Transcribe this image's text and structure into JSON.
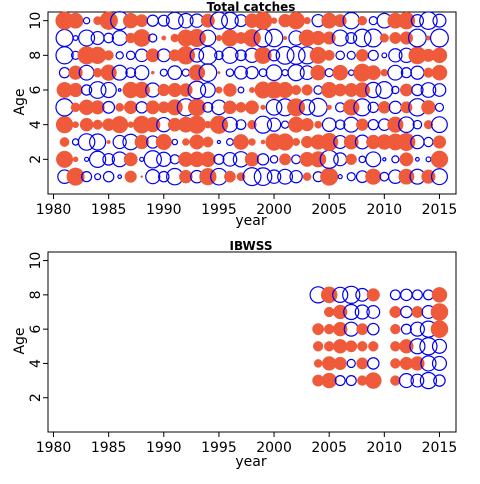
{
  "chart_data": [
    {
      "type": "scatter",
      "title": "Total catches",
      "xlabel": "year",
      "ylabel": "Age",
      "x_ticks": [
        1980,
        1985,
        1990,
        1995,
        2000,
        2005,
        2010,
        2015
      ],
      "y_ticks": [
        2,
        4,
        6,
        8,
        10
      ],
      "xlim": [
        1979.5,
        2016.5
      ],
      "ylim": [
        0,
        10.5
      ],
      "grid": false,
      "legend": "none",
      "encoding": "bubble size = residual magnitude; filled = positive, open = negative",
      "colors": {
        "positive": "#EE5A3A",
        "negative": "#0000EE"
      },
      "years": [
        1981,
        2015
      ],
      "ages": [
        1,
        10
      ],
      "residual_seed": 7
    },
    {
      "type": "scatter",
      "title": "IBWSS",
      "xlabel": "year",
      "ylabel": "Age",
      "x_ticks": [
        1980,
        1985,
        1990,
        1995,
        2000,
        2005,
        2010,
        2015
      ],
      "y_ticks": [
        2,
        4,
        6,
        8,
        10
      ],
      "xlim": [
        1979.5,
        2016.5
      ],
      "ylim": [
        0,
        10.5
      ],
      "grid": false,
      "legend": "none",
      "encoding": "bubble size = residual magnitude; filled = positive, open = negative",
      "colors": {
        "positive": "#EE5A3A",
        "negative": "#0000EE"
      },
      "points": [
        [
          2004,
          8,
          -0.8
        ],
        [
          2005,
          8,
          0.8
        ],
        [
          2006,
          8,
          -0.7
        ],
        [
          2007,
          8,
          -0.9
        ],
        [
          2008,
          8,
          -0.5
        ],
        [
          2009,
          8,
          0.5
        ],
        [
          2011,
          8,
          -0.3
        ],
        [
          2012,
          8,
          -0.4
        ],
        [
          2013,
          8,
          -0.3
        ],
        [
          2014,
          8,
          -0.3
        ],
        [
          2015,
          8,
          0.7
        ],
        [
          2005,
          7,
          0.3
        ],
        [
          2006,
          7,
          0.6
        ],
        [
          2007,
          7,
          -0.7
        ],
        [
          2008,
          7,
          -0.6
        ],
        [
          2009,
          7,
          -0.5
        ],
        [
          2011,
          7,
          0.4
        ],
        [
          2012,
          7,
          -0.4
        ],
        [
          2013,
          7,
          0.4
        ],
        [
          2014,
          7,
          -0.5
        ],
        [
          2015,
          7,
          0.9
        ],
        [
          2004,
          6,
          0.4
        ],
        [
          2005,
          6,
          0.3
        ],
        [
          2006,
          6,
          0.6
        ],
        [
          2007,
          6,
          -0.6
        ],
        [
          2008,
          6,
          0.4
        ],
        [
          2009,
          6,
          -0.4
        ],
        [
          2011,
          6,
          0.3
        ],
        [
          2012,
          6,
          -0.3
        ],
        [
          2013,
          6,
          -0.6
        ],
        [
          2014,
          6,
          -0.8
        ],
        [
          2015,
          6,
          0.9
        ],
        [
          2004,
          5,
          0.3
        ],
        [
          2005,
          5,
          0.3
        ],
        [
          2006,
          5,
          0.6
        ],
        [
          2007,
          5,
          0.4
        ],
        [
          2008,
          5,
          0.3
        ],
        [
          2009,
          5,
          0.3
        ],
        [
          2011,
          5,
          0.3
        ],
        [
          2012,
          5,
          0.6
        ],
        [
          2013,
          5,
          -0.7
        ],
        [
          2014,
          5,
          -0.9
        ],
        [
          2015,
          5,
          -0.6
        ],
        [
          2004,
          4,
          0.2
        ],
        [
          2005,
          4,
          0.6
        ],
        [
          2006,
          4,
          0.5
        ],
        [
          2007,
          4,
          -0.2
        ],
        [
          2008,
          4,
          0.4
        ],
        [
          2009,
          4,
          -0.4
        ],
        [
          2011,
          4,
          0.3
        ],
        [
          2012,
          4,
          0.5
        ],
        [
          2013,
          4,
          0.6
        ],
        [
          2014,
          4,
          -0.7
        ],
        [
          2015,
          4,
          -0.6
        ],
        [
          2004,
          3,
          0.4
        ],
        [
          2005,
          3,
          0.7
        ],
        [
          2006,
          3,
          -0.3
        ],
        [
          2007,
          3,
          -0.3
        ],
        [
          2008,
          3,
          0.3
        ],
        [
          2009,
          3,
          0.8
        ],
        [
          2011,
          3,
          0.3
        ],
        [
          2012,
          3,
          -0.6
        ],
        [
          2013,
          3,
          -0.5
        ],
        [
          2014,
          3,
          -0.8
        ],
        [
          2015,
          3,
          -0.4
        ]
      ]
    }
  ]
}
